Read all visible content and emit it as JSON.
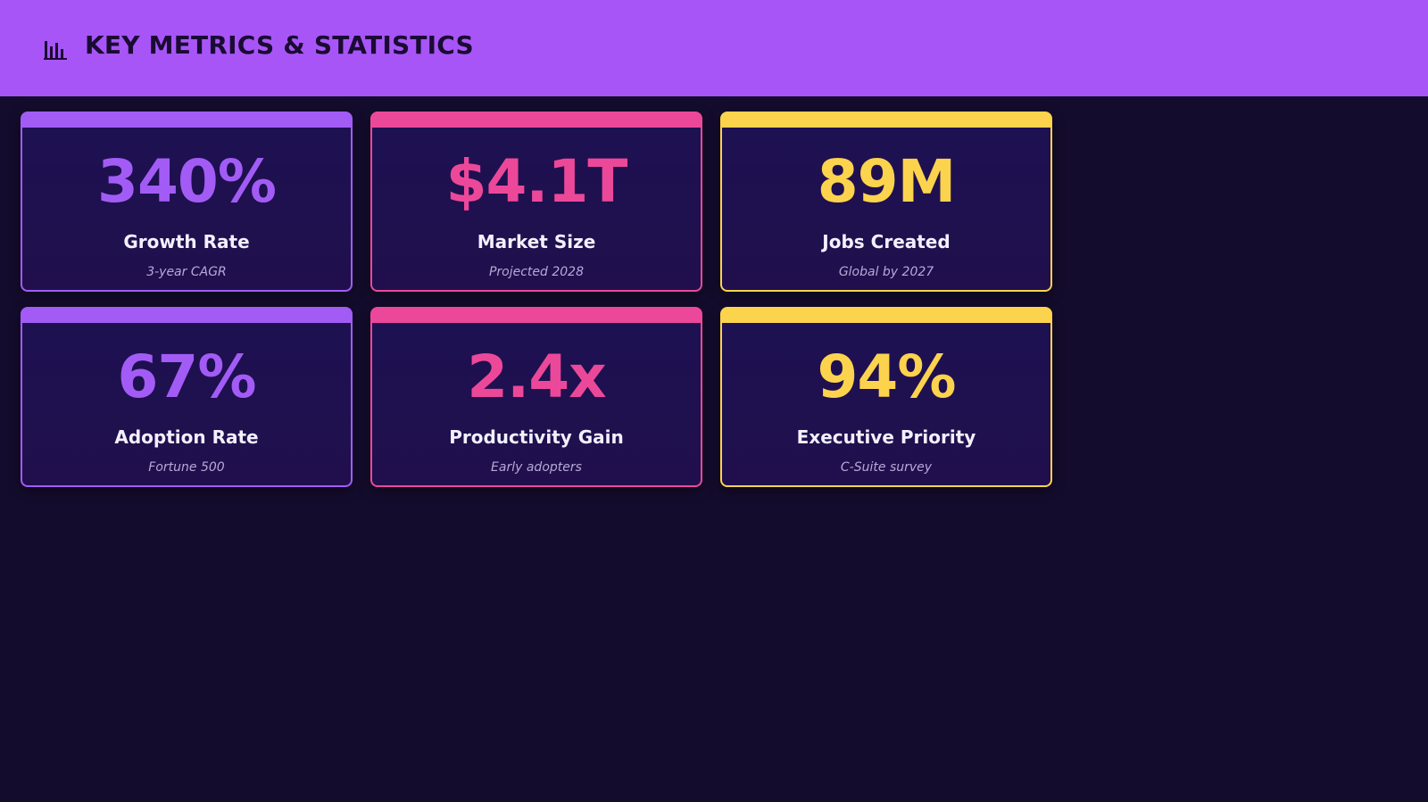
{
  "header": {
    "title": "KEY METRICS & STATISTICS"
  },
  "cards": [
    {
      "value": "340%",
      "label": "Growth Rate",
      "note": "3-year CAGR",
      "color": "#a25cf5"
    },
    {
      "value": "$4.1T",
      "label": "Market Size",
      "note": "Projected 2028",
      "color": "#ec4899"
    },
    {
      "value": "89M",
      "label": "Jobs Created",
      "note": "Global by 2027",
      "color": "#fcd34d"
    },
    {
      "value": "67%",
      "label": "Adoption Rate",
      "note": "Fortune 500",
      "color": "#a25cf5"
    },
    {
      "value": "2.4x",
      "label": "Productivity Gain",
      "note": "Early adopters",
      "color": "#ec4899"
    },
    {
      "value": "94%",
      "label": "Executive Priority",
      "note": "C-Suite survey",
      "color": "#fcd34d"
    }
  ]
}
